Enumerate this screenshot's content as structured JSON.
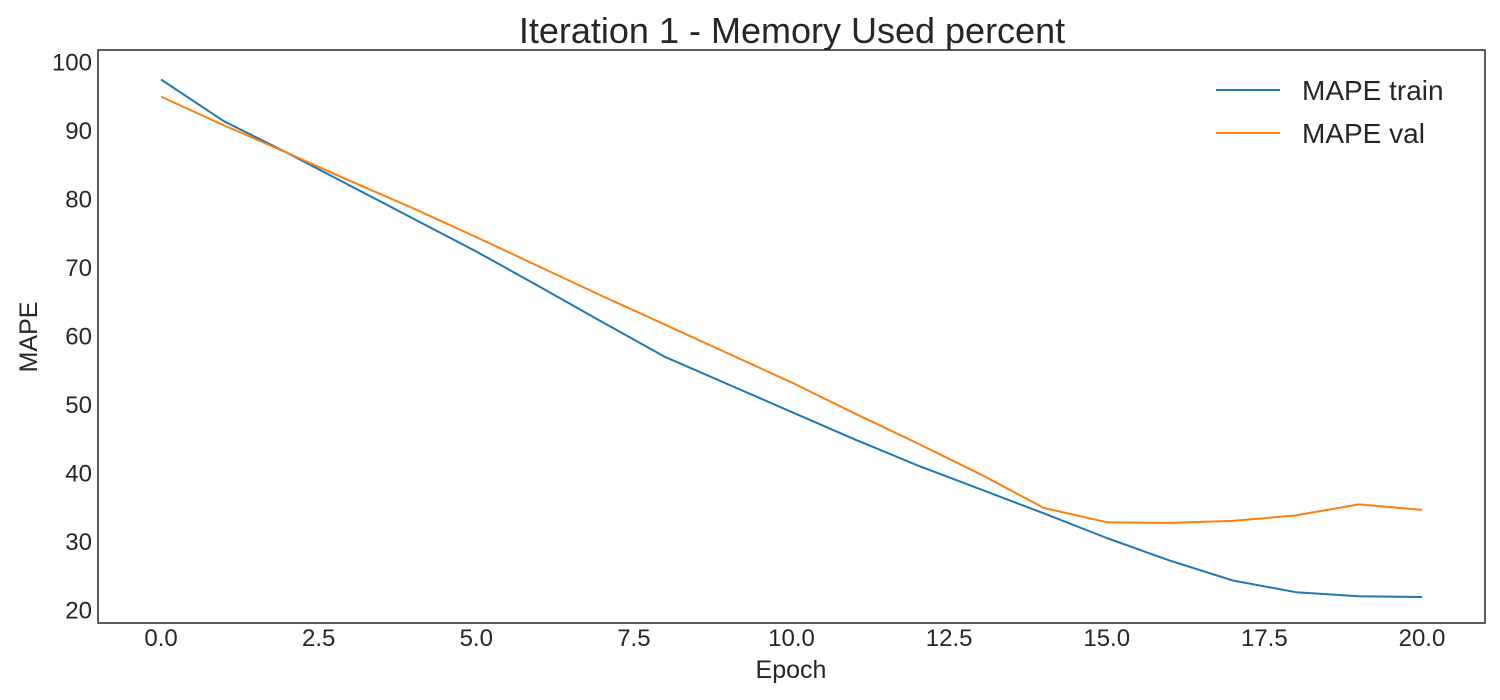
{
  "chart_data": {
    "type": "line",
    "title": "Iteration 1 - Memory Used percent",
    "xlabel": "Epoch",
    "ylabel": "MAPE",
    "xlim": [
      -1,
      21
    ],
    "ylim": [
      18.2,
      101.8
    ],
    "grid": false,
    "legend_position": "top-right",
    "x": [
      0,
      1,
      2,
      3,
      4,
      5,
      6,
      7,
      8,
      9,
      10,
      11,
      12,
      13,
      14,
      15,
      16,
      17,
      18,
      19,
      20
    ],
    "x_ticks": [
      "0.0",
      "2.5",
      "5.0",
      "7.5",
      "10.0",
      "12.5",
      "15.0",
      "17.5",
      "20.0"
    ],
    "x_tick_values": [
      0,
      2.5,
      5,
      7.5,
      10,
      12.5,
      15,
      17.5,
      20
    ],
    "y_ticks": [
      "20",
      "30",
      "40",
      "50",
      "60",
      "70",
      "80",
      "90",
      "100"
    ],
    "y_tick_values": [
      20,
      30,
      40,
      50,
      60,
      70,
      80,
      90,
      100
    ],
    "series": [
      {
        "name": "MAPE train",
        "color": "#1f77b4",
        "values": [
          97.5,
          91.4,
          86.8,
          82.0,
          77.2,
          72.4,
          67.3,
          62.1,
          57.0,
          53.0,
          49.0,
          45.0,
          41.2,
          37.7,
          34.2,
          30.6,
          27.3,
          24.4,
          22.7,
          22.1,
          22.0
        ]
      },
      {
        "name": "MAPE val",
        "color": "#ff7f0e",
        "values": [
          95.0,
          90.8,
          86.8,
          82.7,
          78.7,
          74.5,
          70.2,
          65.9,
          61.7,
          57.5,
          53.3,
          48.8,
          44.4,
          39.9,
          35.0,
          32.9,
          32.8,
          33.1,
          33.9,
          35.5,
          34.7
        ]
      }
    ]
  }
}
